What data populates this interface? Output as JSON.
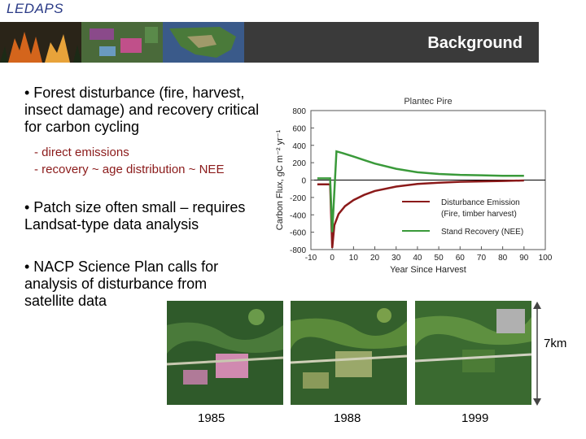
{
  "header": {
    "brand": "LEDAPS",
    "title": "Background"
  },
  "bullets": [
    {
      "text": "• Forest disturbance (fire, harvest, insect damage) and recovery critical for carbon cycling"
    },
    {
      "text": "• Patch size often small – requires Landsat-type data analysis"
    },
    {
      "text": "• NACP Science Plan calls for analysis of disturbance from satellite data"
    }
  ],
  "sub_bullets": [
    "- direct emissions",
    "- recovery ~ age distribution ~ NEE"
  ],
  "chart_data": {
    "type": "line",
    "title": "Plantec Pire",
    "xlabel": "Year Since Harvest",
    "ylabel": "Carbon Flux, gC m⁻² yr⁻¹",
    "xlim": [
      -10,
      100
    ],
    "ylim": [
      -800,
      800
    ],
    "x_ticks": [
      -10,
      0,
      10,
      20,
      30,
      40,
      50,
      60,
      70,
      80,
      90,
      100
    ],
    "y_ticks": [
      -800,
      -600,
      -400,
      -200,
      0,
      200,
      400,
      600,
      800
    ],
    "series": [
      {
        "name": "Disturbance Emission (Fire, timber harvest)",
        "color": "#8b1a1a",
        "x": [
          -7,
          -1,
          0,
          1,
          3,
          6,
          10,
          15,
          20,
          30,
          40,
          50,
          60,
          70,
          80,
          90
        ],
        "y": [
          -50,
          -50,
          -780,
          -520,
          -390,
          -300,
          -230,
          -170,
          -125,
          -75,
          -45,
          -30,
          -20,
          -15,
          -10,
          -5
        ]
      },
      {
        "name": "Stand Recovery (NEE)",
        "color": "#3a9a3a",
        "x": [
          -7,
          -1,
          0,
          2,
          5,
          10,
          15,
          20,
          30,
          40,
          50,
          60,
          70,
          80,
          90
        ],
        "y": [
          20,
          20,
          -600,
          330,
          310,
          270,
          230,
          190,
          130,
          90,
          70,
          60,
          55,
          50,
          50
        ]
      }
    ]
  },
  "images": [
    {
      "year": "1985"
    },
    {
      "year": "1988"
    },
    {
      "year": "1999"
    }
  ],
  "scale_bar": {
    "label": "7km"
  },
  "colors": {
    "banner": "#3a3a3a",
    "brand": "#2a3a86",
    "disturbance": "#8b1a1a",
    "recovery": "#3a9a3a"
  }
}
